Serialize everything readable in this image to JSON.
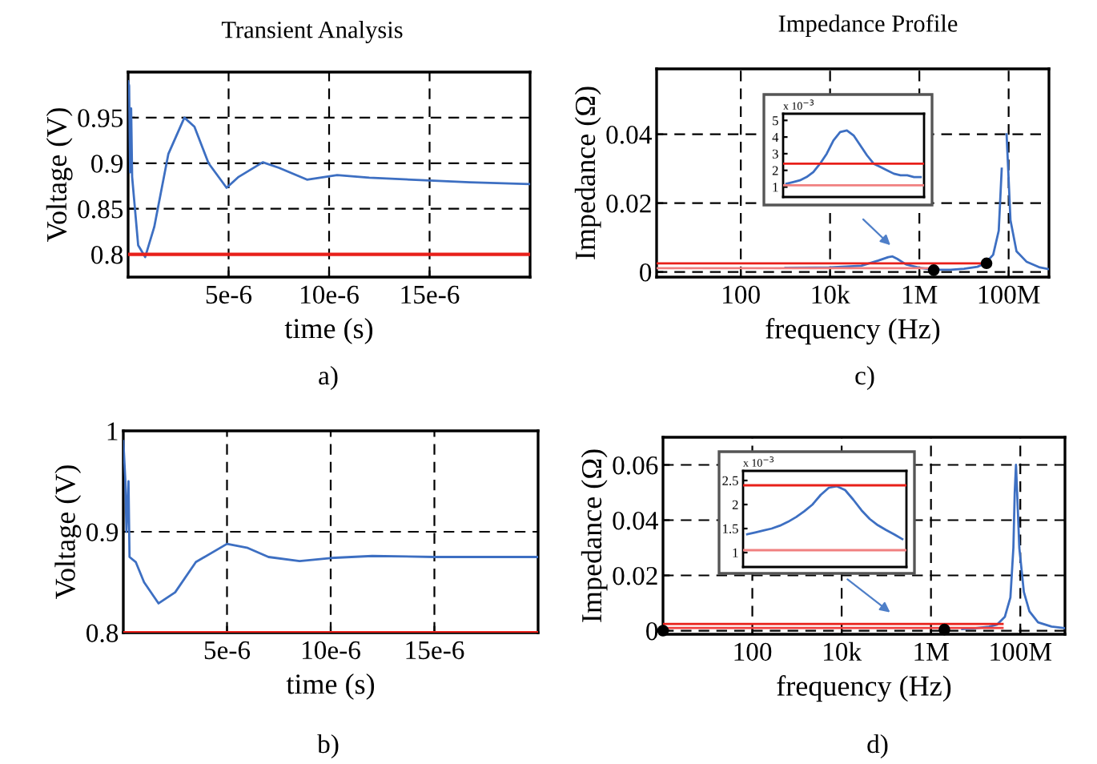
{
  "chart_data": [
    {
      "type": "line",
      "title": "Transient Analysis",
      "xlabel": "time (s)",
      "ylabel": "Voltage (V)",
      "annotations": [
        "a)"
      ],
      "grid": true,
      "xlim": [
        0,
        2e-05
      ],
      "xticks": [
        {
          "value": 5e-06,
          "label": "5e-6"
        },
        {
          "value": 1e-05,
          "label": "10e-6"
        },
        {
          "value": 1.5e-05,
          "label": "15e-6"
        }
      ],
      "ylim": [
        0.775,
        1.0
      ],
      "yticks": [
        0.8,
        0.85,
        0.9,
        0.95
      ],
      "series": [
        {
          "color": "#3d6fc2",
          "x": [
            0,
            5e-08,
            1e-07,
            1.5e-07,
            2e-07,
            3e-07,
            5e-07,
            8.5e-07,
            1.3e-06,
            2e-06,
            2.8e-06,
            3.3e-06,
            4e-06,
            4.9e-06,
            5.5e-06,
            6.7e-06,
            7.5e-06,
            8.9e-06,
            1.04e-05,
            1.2e-05,
            1.5e-05,
            1.7e-05,
            2e-05
          ],
          "values": [
            0.99,
            0.985,
            0.89,
            0.96,
            0.885,
            0.86,
            0.81,
            0.797,
            0.83,
            0.91,
            0.95,
            0.94,
            0.9,
            0.873,
            0.885,
            0.901,
            0.895,
            0.882,
            0.887,
            0.884,
            0.881,
            0.879,
            0.877
          ]
        }
      ],
      "ref_lines": [
        {
          "axis": "y",
          "value": 0.8,
          "color": "#e8201a"
        }
      ]
    },
    {
      "type": "line",
      "title": "Impedance Profile",
      "xlabel": "frequency (Hz)",
      "ylabel": "Impedance (Ω)",
      "annotations": [
        "c)"
      ],
      "grid": true,
      "log": "x",
      "xlim": [
        1.3,
        800000000.0
      ],
      "xticks": [
        100,
        {
          "value": 10000,
          "label": "10k"
        },
        {
          "value": 1000000,
          "label": "1M"
        },
        {
          "value": 100000000,
          "label": "100M"
        }
      ],
      "ylim": [
        -0.0015,
        0.059
      ],
      "yticks": [
        0,
        0.02,
        0.04
      ],
      "series": [
        {
          "color": "#3d6fc2",
          "x": [
            1000,
            10000,
            50000,
            120000,
            200000,
            250000,
            320000,
            500000,
            1000000,
            2000000,
            5000000,
            10000000,
            20000000,
            30000000,
            45000000,
            60000000,
            70000000,
            75000000,
            80000000,
            90000000,
            110000000,
            150000000,
            250000000,
            500000000,
            800000000
          ],
          "values": [
            0.0012,
            0.0013,
            0.0018,
            0.0033,
            0.0043,
            0.0045,
            0.0038,
            0.0022,
            0.0012,
            0.0007,
            0.0006,
            0.0009,
            0.0015,
            0.0025,
            0.005,
            0.012,
            0.03,
            null,
            null,
            0.04,
            0.015,
            0.006,
            0.003,
            0.0013,
            0.0008
          ]
        },
        {
          "color": "#e8201a",
          "x": [
            1.3,
            32000000
          ],
          "values": [
            0.0025,
            0.0025
          ]
        },
        {
          "color": "#f08080",
          "x": [
            1.3,
            2100000
          ],
          "values": [
            0.0011,
            0.0011
          ]
        },
        {
          "type": "scatter",
          "color": "#000000",
          "x": [
            2100000,
            32000000
          ],
          "values": [
            0.0005,
            0.0025
          ]
        }
      ]
    },
    {
      "type": "line",
      "annotations": [
        "x 10$^{−3}$"
      ],
      "tick_labels": "y",
      "categories": [
        null,
        null,
        null,
        null,
        null,
        null,
        null,
        null,
        null,
        null,
        null,
        null,
        null,
        null,
        null,
        null,
        null,
        null,
        null,
        null,
        null
      ],
      "ylim": [
        0.4,
        5.4
      ],
      "yticks": [
        1,
        2,
        3,
        4,
        5
      ],
      "series": [
        {
          "color": "#3d6fc2",
          "values": [
            1.2,
            1.3,
            1.4,
            1.6,
            1.9,
            2.4,
            3.0,
            3.8,
            4.3,
            4.4,
            4.1,
            3.5,
            2.9,
            2.4,
            2.2,
            2.0,
            1.8,
            1.7,
            1.7,
            1.6,
            1.6
          ]
        }
      ],
      "ref_lines": [
        {
          "axis": "y",
          "value": 2.4,
          "color": "#e8201a"
        },
        {
          "axis": "y",
          "value": 1.1,
          "color": "#f08080"
        }
      ]
    },
    {
      "type": "line",
      "xlabel": "time (s)",
      "ylabel": "Voltage (V)",
      "annotations": [
        "b)"
      ],
      "grid": true,
      "xlim": [
        0,
        2e-05
      ],
      "xticks": [
        {
          "value": 5e-06,
          "label": "5e-6"
        },
        {
          "value": 1e-05,
          "label": "10e-6"
        },
        {
          "value": 1.5e-05,
          "label": "15e-6"
        }
      ],
      "ylim": [
        0.8,
        1.0
      ],
      "yticks": [
        0.8,
        0.9,
        1
      ],
      "series": [
        {
          "color": "#3d6fc2",
          "x": [
            0,
            1e-07,
            1.5e-07,
            2.5e-07,
            3e-07,
            6e-07,
            1e-06,
            1.7e-06,
            2.5e-06,
            3.5e-06,
            5e-06,
            6e-06,
            7e-06,
            8.5e-06,
            1e-05,
            1.2e-05,
            1.5e-05,
            2e-05
          ],
          "values": [
            0.99,
            0.95,
            0.9,
            0.95,
            0.875,
            0.87,
            0.85,
            0.829,
            0.84,
            0.87,
            0.888,
            0.884,
            0.875,
            0.871,
            0.874,
            0.876,
            0.875,
            0.875
          ]
        }
      ],
      "ref_lines": [
        {
          "axis": "y",
          "value": 0.8,
          "color": "#e8201a"
        }
      ]
    },
    {
      "type": "line",
      "xlabel": "frequency (Hz)",
      "ylabel": "Impedance (Ω)",
      "annotations": [
        "d)"
      ],
      "grid": true,
      "log": "x",
      "xlim": [
        1,
        1000000000.0
      ],
      "xticks": [
        100,
        {
          "value": 10000,
          "label": "10k"
        },
        {
          "value": 1000000,
          "label": "1M"
        },
        {
          "value": 100000000,
          "label": "100M"
        }
      ],
      "ylim": [
        -0.0013,
        0.07
      ],
      "yticks": [
        0,
        0.02,
        0.04,
        0.06
      ],
      "series": [
        {
          "color": "#3d6fc2",
          "x": [
            5000000,
            10000000,
            20000000,
            30000000,
            45000000,
            60000000,
            70000000,
            75000000,
            80000000,
            85000000,
            95000000,
            120000000,
            160000000,
            250000000,
            500000000,
            1000000000
          ],
          "values": [
            0.0006,
            0.0009,
            0.0014,
            0.0022,
            0.005,
            0.012,
            0.03,
            0.05,
            0.06,
            0.05,
            0.03,
            0.014,
            0.007,
            0.003,
            0.0015,
            0.0009
          ]
        },
        {
          "color": "#e8201a",
          "x": [
            1,
            40000000
          ],
          "values": [
            0.0024,
            0.0024
          ]
        },
        {
          "color": "#f04040",
          "x": [
            1,
            40000000
          ],
          "values": [
            0.001,
            0.001
          ]
        },
        {
          "type": "scatter",
          "color": "#000000",
          "x": [
            1,
            2000000
          ],
          "values": [
            0,
            0.0004
          ]
        }
      ]
    },
    {
      "type": "line",
      "annotations": [
        "x 10$^{−3}$"
      ],
      "tick_labels": "y",
      "categories": [
        null,
        null,
        null,
        null,
        null,
        null,
        null,
        null,
        null,
        null,
        null,
        null,
        null,
        null,
        null,
        null,
        null,
        null,
        null,
        null
      ],
      "ylim": [
        0.7,
        2.7
      ],
      "yticks": [
        1,
        1.5,
        2,
        2.5
      ],
      "series": [
        {
          "color": "#3d6fc2",
          "values": [
            1.38,
            1.42,
            1.46,
            1.5,
            1.56,
            1.64,
            1.74,
            1.86,
            2.0,
            2.2,
            2.35,
            2.38,
            2.3,
            2.1,
            1.88,
            1.7,
            1.57,
            1.47,
            1.38,
            1.28
          ]
        }
      ],
      "ref_lines": [
        {
          "axis": "y",
          "value": 2.4,
          "color": "#e8201a"
        },
        {
          "axis": "y",
          "value": 1.05,
          "color": "#f08080"
        }
      ]
    }
  ]
}
